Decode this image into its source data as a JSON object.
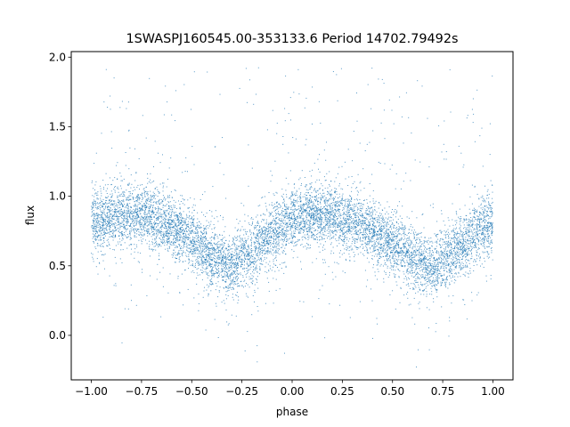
{
  "chart_data": {
    "type": "scatter",
    "title": "1SWASPJ160545.00-353133.6 Period 14702.79492s",
    "xlabel": "phase",
    "ylabel": "flux",
    "xlim": [
      -1.1,
      1.1
    ],
    "ylim": [
      -0.32,
      2.04
    ],
    "xticks": [
      -1.0,
      -0.75,
      -0.5,
      -0.25,
      0.0,
      0.25,
      0.5,
      0.75,
      1.0
    ],
    "xtick_labels": [
      "−1.00",
      "−0.75",
      "−0.50",
      "−0.25",
      "0.00",
      "0.25",
      "0.50",
      "0.75",
      "1.00"
    ],
    "yticks": [
      0.0,
      0.5,
      1.0,
      1.5,
      2.0
    ],
    "ytick_labels": [
      "0.0",
      "0.5",
      "1.0",
      "1.5",
      "2.0"
    ],
    "grid": false,
    "point_color": "#1f77b4",
    "series": [
      {
        "x_range": [
          -1.0,
          1.0
        ],
        "description_points": [
          {
            "x": -1.0,
            "y": 0.8
          },
          {
            "x": -0.9,
            "y": 0.85
          },
          {
            "x": -0.8,
            "y": 0.88
          },
          {
            "x": -0.7,
            "y": 0.85
          },
          {
            "x": -0.6,
            "y": 0.78
          },
          {
            "x": -0.5,
            "y": 0.68
          },
          {
            "x": -0.4,
            "y": 0.56
          },
          {
            "x": -0.3,
            "y": 0.5
          },
          {
            "x": -0.2,
            "y": 0.6
          },
          {
            "x": -0.1,
            "y": 0.74
          },
          {
            "x": 0.0,
            "y": 0.84
          },
          {
            "x": 0.1,
            "y": 0.87
          },
          {
            "x": 0.2,
            "y": 0.86
          },
          {
            "x": 0.3,
            "y": 0.82
          },
          {
            "x": 0.4,
            "y": 0.75
          },
          {
            "x": 0.5,
            "y": 0.66
          },
          {
            "x": 0.6,
            "y": 0.55
          },
          {
            "x": 0.7,
            "y": 0.48
          },
          {
            "x": 0.8,
            "y": 0.58
          },
          {
            "x": 0.9,
            "y": 0.72
          },
          {
            "x": 1.0,
            "y": 0.8
          }
        ]
      }
    ]
  }
}
